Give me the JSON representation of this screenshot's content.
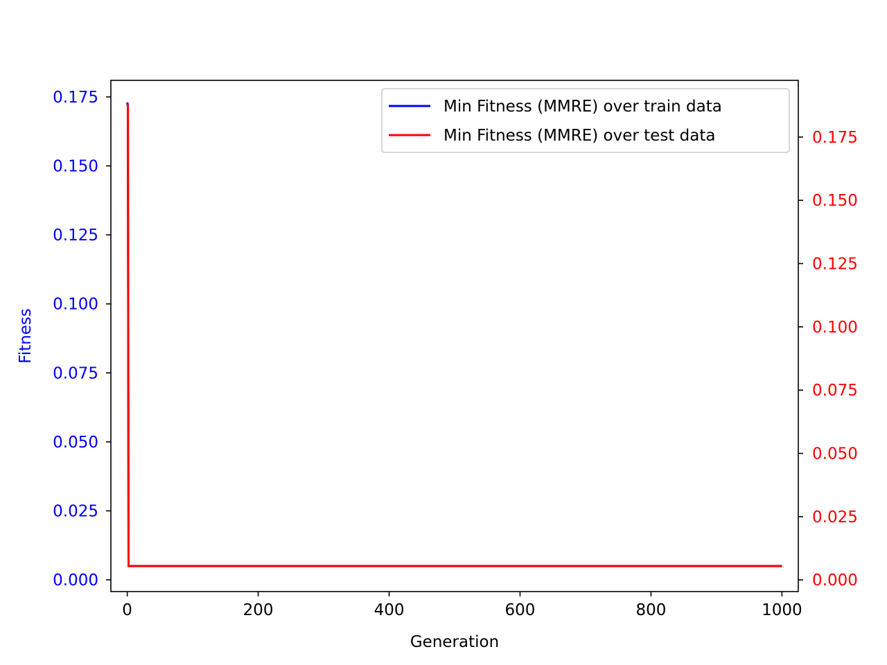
{
  "colors": {
    "train": "#0000ff",
    "test": "#ff0000",
    "left_axis": "#0000ff",
    "right_axis": "#ff0000",
    "text": "#000000"
  },
  "chart_data": {
    "type": "line",
    "title": "",
    "xlabel": "Generation",
    "ylabel": "Fitness",
    "ylabel_right": "",
    "xlim": [
      -25,
      1025
    ],
    "ylim": [
      -0.00425,
      0.181
    ],
    "ylim_right": [
      -0.0046,
      0.1974
    ],
    "x_ticks": [
      0,
      200,
      400,
      600,
      800,
      1000
    ],
    "x_tick_labels": [
      "0",
      "200",
      "400",
      "600",
      "800",
      "1000"
    ],
    "y_ticks": [
      0.0,
      0.025,
      0.05,
      0.075,
      0.1,
      0.125,
      0.15,
      0.175
    ],
    "y_tick_labels": [
      "0.000",
      "0.025",
      "0.050",
      "0.075",
      "0.100",
      "0.125",
      "0.150",
      "0.175"
    ],
    "y_ticks_right": [
      0.0,
      0.025,
      0.05,
      0.075,
      0.1,
      0.125,
      0.15,
      0.175
    ],
    "y_tick_labels_right": [
      "0.000",
      "0.025",
      "0.050",
      "0.075",
      "0.100",
      "0.125",
      "0.150",
      "0.175"
    ],
    "grid": false,
    "legend_position": "top-right",
    "series": [
      {
        "name": "Min Fitness (MMRE) over train data",
        "axis": "left",
        "color": "#0000ff",
        "x": [
          0,
          1,
          2,
          1000
        ],
        "y": [
          0.173,
          0.172,
          0.005,
          0.005
        ]
      },
      {
        "name": "Min Fitness (MMRE) over test data",
        "axis": "right",
        "color": "#ff0000",
        "x": [
          0,
          1,
          2,
          1000
        ],
        "y": [
          0.188,
          0.187,
          0.0055,
          0.0055
        ]
      }
    ]
  }
}
